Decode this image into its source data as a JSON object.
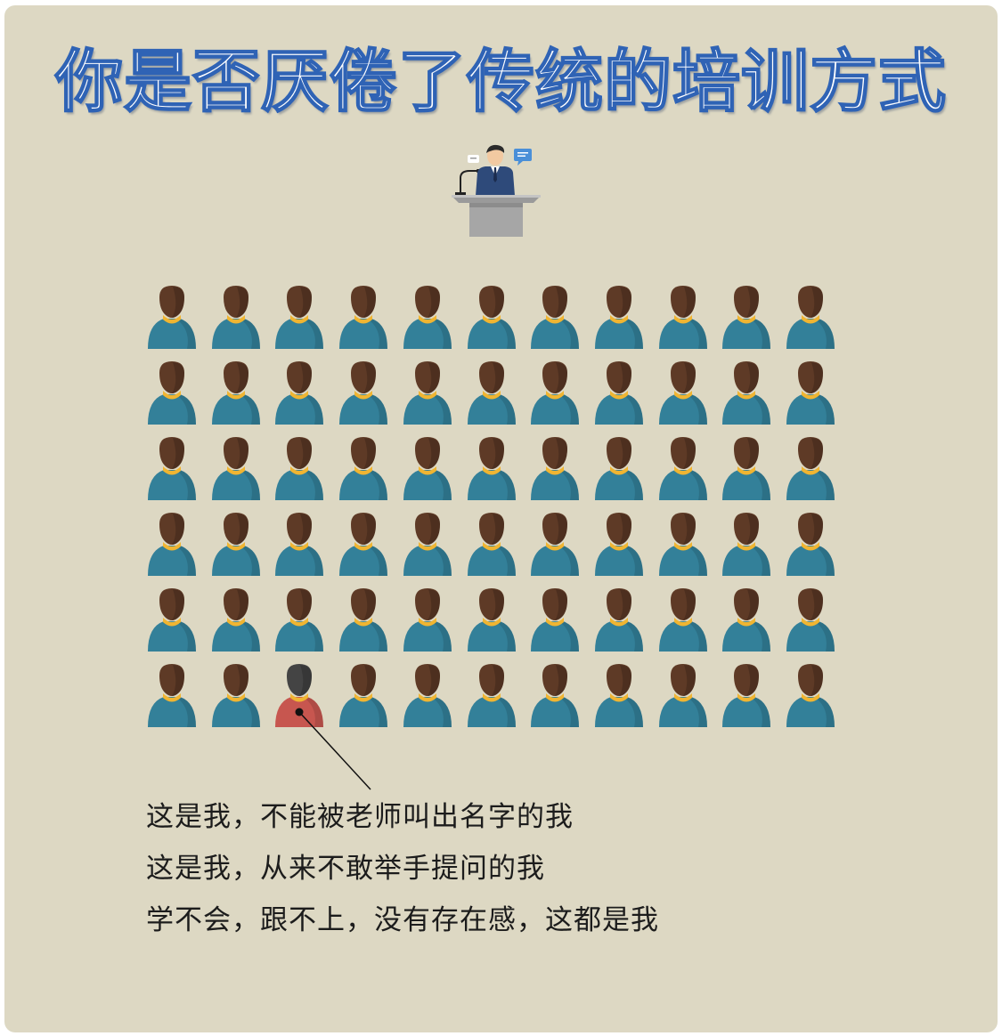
{
  "title": "你是否厌倦了传统的培训方式",
  "crowd": {
    "rows": 6,
    "cols": 11,
    "highlight_row": 6,
    "highlight_col": 3
  },
  "colors": {
    "background": "#ddd8c3",
    "title_outline": "#2f63b5",
    "audience_body": "#338099",
    "audience_hair": "#5e3a26",
    "highlight_body": "#c7564f",
    "highlight_hair": "#444444",
    "collar": "#f0b532"
  },
  "captions": [
    "这是我，不能被老师叫出名字的我",
    "这是我，从来不敢举手提问的我",
    "学不会，跟不上，没有存在感，这都是我"
  ]
}
